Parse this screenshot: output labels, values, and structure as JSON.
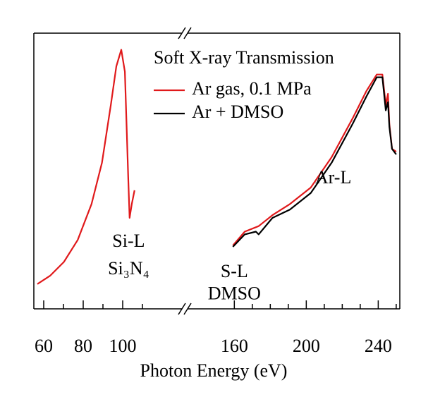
{
  "chart_data": {
    "type": "line",
    "x_label": "Photon Energy (eV)",
    "legend_title": "Soft X-ray Transmission",
    "ylim": [
      0,
      1
    ],
    "x_segments": [
      {
        "xlim": [
          55,
          130
        ],
        "xticks": [
          60,
          80,
          100
        ],
        "xminor": [
          70,
          90,
          110
        ]
      },
      {
        "xlim": [
          134,
          252
        ],
        "xticks": [
          160,
          200,
          240
        ],
        "xminor": [
          170,
          180,
          190,
          210,
          220,
          230,
          250
        ]
      }
    ],
    "series": [
      {
        "name": "Ar gas, 0.1 MPa",
        "color": "#e0191b",
        "x": [
          56.8,
          63.2,
          70.2,
          77.2,
          84.2,
          89.5,
          94.0,
          96.8,
          99.3,
          101.1,
          102.8,
          103.5,
          104.6,
          106.0,
          159.2,
          165.8,
          173.5,
          181.2,
          190.9,
          202.5,
          214.1,
          225.7,
          233.4,
          239.2,
          242.3,
          244.2,
          245.4,
          246.2,
          247.7,
          250.0
        ],
        "values": [
          0.09,
          0.12,
          0.17,
          0.25,
          0.38,
          0.53,
          0.74,
          0.88,
          0.94,
          0.86,
          0.48,
          0.33,
          0.38,
          0.43,
          0.23,
          0.28,
          0.3,
          0.34,
          0.38,
          0.44,
          0.55,
          0.69,
          0.79,
          0.85,
          0.85,
          0.74,
          0.78,
          0.67,
          0.58,
          0.57
        ]
      },
      {
        "name": "Ar + DMSO",
        "color": "#000000",
        "x": [
          159.2,
          165.8,
          172.0,
          173.5,
          181.2,
          190.9,
          202.5,
          214.1,
          225.7,
          233.4,
          239.2,
          242.3,
          244.2,
          245.4,
          246.2,
          247.7,
          250.0
        ],
        "values": [
          0.225,
          0.27,
          0.28,
          0.27,
          0.33,
          0.36,
          0.42,
          0.53,
          0.67,
          0.77,
          0.84,
          0.84,
          0.72,
          0.75,
          0.66,
          0.58,
          0.56
        ]
      }
    ],
    "annotations": [
      {
        "text": "Si-L",
        "x": 103,
        "y": 0.24
      },
      {
        "text": "Si₃N₄",
        "x": 103,
        "y": 0.14
      },
      {
        "text": "S-L",
        "x": 160,
        "y": 0.13
      },
      {
        "text": "DMSO",
        "x": 160,
        "y": 0.05
      },
      {
        "text": "Ar-L",
        "x": 215,
        "y": 0.47
      }
    ]
  }
}
